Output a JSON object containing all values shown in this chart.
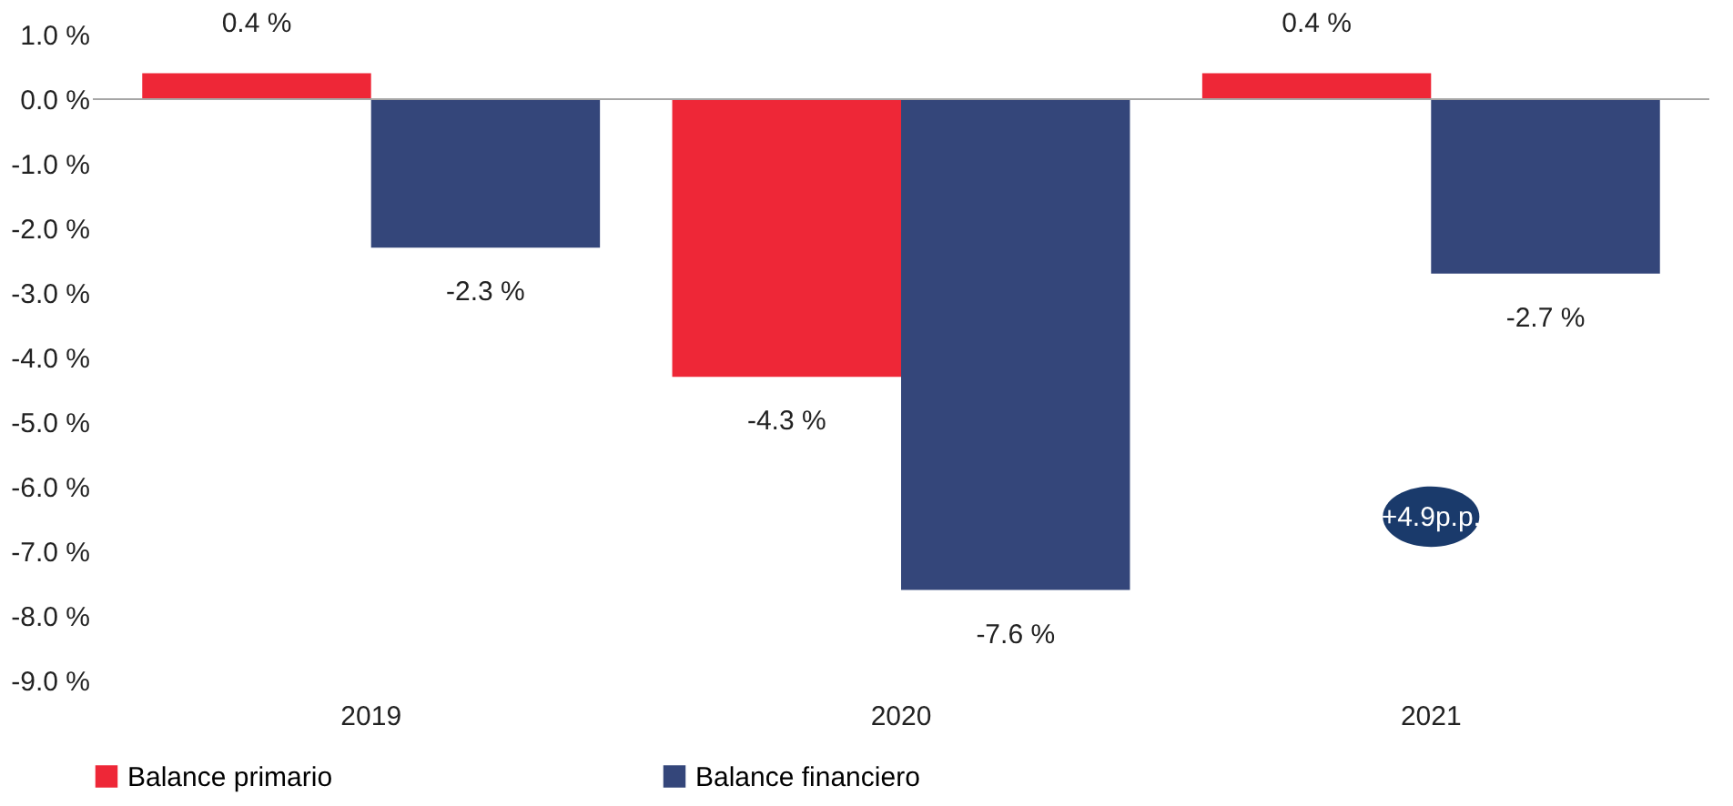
{
  "chart_data": {
    "type": "bar",
    "categories": [
      "2019",
      "2020",
      "2021"
    ],
    "series": [
      {
        "name": "Balance primario",
        "color": "#ee2737",
        "values": [
          0.4,
          -4.3,
          0.4
        ],
        "value_labels": [
          "0.4 %",
          "-4.3 %",
          "0.4 %"
        ]
      },
      {
        "name": "Balance financiero",
        "color": "#34467a",
        "values": [
          -2.3,
          -7.6,
          -2.7
        ],
        "value_labels": [
          "-2.3 %",
          "-7.6 %",
          "-2.7 %"
        ]
      }
    ],
    "ylim": [
      -9,
      1
    ],
    "yticks": [
      {
        "value": 1,
        "label": "1.0 %"
      },
      {
        "value": 0,
        "label": "0.0 %"
      },
      {
        "value": -1,
        "label": "-1.0 %"
      },
      {
        "value": -2,
        "label": "-2.0 %"
      },
      {
        "value": -3,
        "label": "-3.0 %"
      },
      {
        "value": -4,
        "label": "-4.0 %"
      },
      {
        "value": -5,
        "label": "-5.0 %"
      },
      {
        "value": -6,
        "label": "-6.0 %"
      },
      {
        "value": -7,
        "label": "-7.0 %"
      },
      {
        "value": -8,
        "label": "-8.0 %"
      },
      {
        "value": -9,
        "label": "-9.0 %"
      }
    ],
    "ref_lines": [
      {
        "axis": "y",
        "value": 0,
        "color": "#a6a6a6"
      }
    ],
    "annotations": [
      "+4.9p.p."
    ],
    "legend": "bottom",
    "grid": false
  }
}
